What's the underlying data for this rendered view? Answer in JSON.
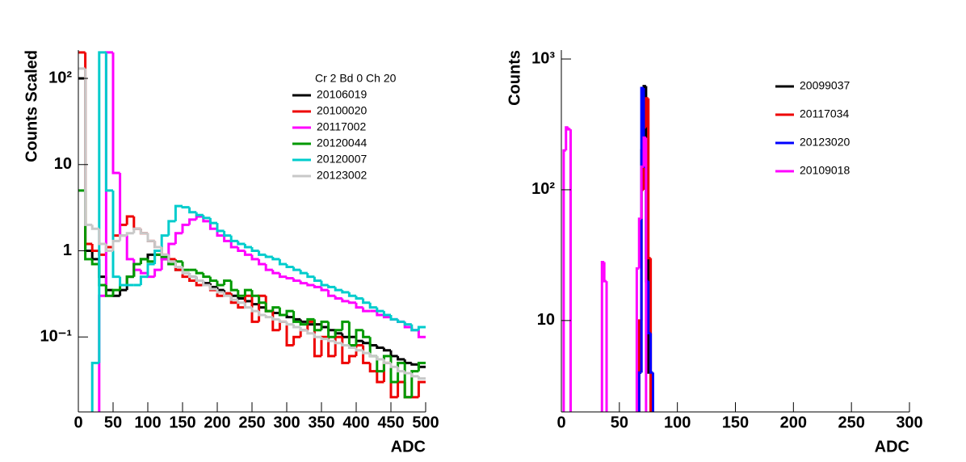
{
  "chart_data": [
    {
      "type": "histogram",
      "x_label": "ADC",
      "y_label": "Counts Scaled",
      "log_y": true,
      "grid": false,
      "legend": "top-right",
      "legend_title": "Cr 2 Bd 0 Ch 20",
      "xlim": [
        0,
        500
      ],
      "xticks": [
        0,
        50,
        100,
        150,
        200,
        250,
        300,
        350,
        400,
        450,
        500
      ],
      "ylim": [
        0.0135,
        213
      ],
      "yticks": [
        {
          "value": 0.1,
          "label": "10⁻¹"
        },
        1,
        10,
        {
          "value": 100,
          "label": "10²"
        }
      ],
      "bins": [
        0,
        10,
        20,
        30,
        40,
        50,
        60,
        70,
        80,
        90,
        100,
        110,
        120,
        130,
        140,
        150,
        160,
        170,
        180,
        190,
        200,
        210,
        220,
        230,
        240,
        250,
        260,
        270,
        280,
        290,
        300,
        310,
        320,
        330,
        340,
        350,
        360,
        370,
        380,
        390,
        400,
        410,
        420,
        430,
        440,
        450,
        460,
        470,
        480,
        490,
        500
      ],
      "series": [
        {
          "name": "20106019",
          "color": "#000000",
          "values": [
            100,
            1,
            0.8,
            0.5,
            0.35,
            0.3,
            0.35,
            0.5,
            0.7,
            0.8,
            0.9,
            0.9,
            0.8,
            0.7,
            0.6,
            0.55,
            0.5,
            0.45,
            0.42,
            0.38,
            0.35,
            0.32,
            0.3,
            0.28,
            0.26,
            0.24,
            0.22,
            0.2,
            0.19,
            0.18,
            0.17,
            0.16,
            0.15,
            0.14,
            0.14,
            0.13,
            0.12,
            0.11,
            0.1,
            0.1,
            0.09,
            0.085,
            0.08,
            0.075,
            0.07,
            0.06,
            0.055,
            0.05,
            0.048,
            0.045
          ]
        },
        {
          "name": "20100020",
          "color": "#ee0000",
          "values": [
            200,
            1.2,
            1,
            0.9,
            1.1,
            1.5,
            2,
            2.5,
            1.8,
            1.6,
            1.3,
            1.1,
            0.9,
            0.8,
            0.6,
            0.5,
            0.45,
            0.4,
            0.4,
            0.35,
            0.3,
            0.32,
            0.25,
            0.22,
            0.3,
            0.15,
            0.3,
            0.2,
            0.12,
            0.15,
            0.08,
            0.1,
            0.12,
            0.15,
            0.06,
            0.1,
            0.06,
            0.1,
            0.05,
            0.06,
            0.08,
            0.05,
            0.04,
            0.03,
            0.05,
            0.02,
            0.03,
            0.02,
            0.02,
            0.03
          ]
        },
        {
          "name": "20117002",
          "color": "#ff00ff",
          "values": [
            0,
            0,
            0,
            0.3,
            200,
            8,
            1.5,
            0.8,
            0.6,
            0.55,
            0.5,
            0.6,
            0.8,
            1.2,
            1.6,
            2,
            2.3,
            2.5,
            2.2,
            1.8,
            1.5,
            1.3,
            1.1,
            1,
            0.9,
            0.8,
            0.7,
            0.6,
            0.55,
            0.5,
            0.48,
            0.45,
            0.42,
            0.4,
            0.38,
            0.35,
            0.3,
            0.28,
            0.26,
            0.25,
            0.22,
            0.2,
            0.2,
            0.18,
            0.17,
            0.16,
            0.15,
            0.13,
            0.12,
            0.1
          ]
        },
        {
          "name": "20120044",
          "color": "#009900",
          "values": [
            5,
            0.8,
            0.7,
            0.4,
            0.3,
            0.35,
            0.4,
            0.5,
            0.7,
            0.8,
            0.75,
            0.9,
            0.85,
            0.7,
            0.75,
            0.6,
            0.6,
            0.55,
            0.5,
            0.45,
            0.4,
            0.45,
            0.35,
            0.3,
            0.35,
            0.3,
            0.25,
            0.2,
            0.22,
            0.18,
            0.2,
            0.15,
            0.14,
            0.16,
            0.12,
            0.15,
            0.1,
            0.12,
            0.15,
            0.08,
            0.12,
            0.1,
            0.06,
            0.04,
            0.06,
            0.03,
            0.05,
            0.02,
            0.04,
            0.05
          ]
        },
        {
          "name": "20120007",
          "color": "#00cccc",
          "values": [
            0,
            0,
            0.05,
            200,
            5,
            0.5,
            0.4,
            0.4,
            0.4,
            0.5,
            0.7,
            1,
            1.5,
            2.2,
            3.3,
            3.2,
            2.8,
            2.6,
            2.4,
            2.1,
            1.7,
            1.5,
            1.3,
            1.2,
            1.1,
            1,
            0.9,
            0.85,
            0.8,
            0.7,
            0.65,
            0.6,
            0.55,
            0.5,
            0.45,
            0.4,
            0.38,
            0.35,
            0.33,
            0.3,
            0.28,
            0.25,
            0.22,
            0.2,
            0.18,
            0.16,
            0.15,
            0.14,
            0.12,
            0.13
          ]
        },
        {
          "name": "20123002",
          "color": "#c8c8c8",
          "values": [
            130,
            2,
            1.8,
            1.2,
            1,
            1.3,
            1.5,
            1.6,
            1.8,
            1.6,
            1.3,
            1.1,
            0.9,
            0.75,
            0.65,
            0.55,
            0.5,
            0.45,
            0.4,
            0.36,
            0.33,
            0.3,
            0.27,
            0.25,
            0.22,
            0.2,
            0.18,
            0.17,
            0.16,
            0.15,
            0.14,
            0.13,
            0.12,
            0.11,
            0.1,
            0.095,
            0.09,
            0.085,
            0.08,
            0.075,
            0.07,
            0.065,
            0.06,
            0.055,
            0.05,
            0.045,
            0.04,
            0.038,
            0.035,
            0.033
          ]
        }
      ]
    },
    {
      "type": "histogram",
      "x_label": "ADC",
      "y_label": "Counts",
      "log_y": true,
      "grid": false,
      "legend": "top-right",
      "xlim": [
        0,
        300
      ],
      "xticks": [
        0,
        50,
        100,
        150,
        200,
        250,
        300
      ],
      "ylim": [
        2,
        1170
      ],
      "yticks": [
        10,
        {
          "value": 100,
          "label": "10²"
        },
        {
          "value": 1000,
          "label": "10³"
        }
      ],
      "bins": [
        0,
        2,
        4,
        6,
        8,
        10,
        35,
        37,
        39,
        41,
        65,
        67,
        69,
        71,
        73,
        75,
        77,
        79,
        300
      ],
      "series": [
        {
          "name": "20099037",
          "color": "#000000",
          "values": [
            0,
            0,
            0,
            0,
            0,
            0,
            0,
            0,
            0,
            0,
            0,
            4,
            200,
            620,
            30,
            4,
            0,
            0
          ]
        },
        {
          "name": "20117034",
          "color": "#ee0000",
          "values": [
            0,
            0,
            0,
            0,
            0,
            0,
            0,
            0,
            0,
            0,
            0,
            10,
            100,
            300,
            500,
            30,
            0,
            0
          ]
        },
        {
          "name": "20123020",
          "color": "#0000ff",
          "values": [
            0,
            0,
            0,
            0,
            0,
            0,
            0,
            0,
            0,
            0,
            0,
            4,
            600,
            150,
            20,
            8,
            4,
            0
          ]
        },
        {
          "name": "20109018",
          "color": "#ff00ff",
          "values": [
            0,
            200,
            300,
            290,
            0,
            0,
            28,
            20,
            0,
            0,
            25,
            60,
            150,
            250,
            0,
            0,
            0,
            0
          ]
        }
      ]
    }
  ]
}
